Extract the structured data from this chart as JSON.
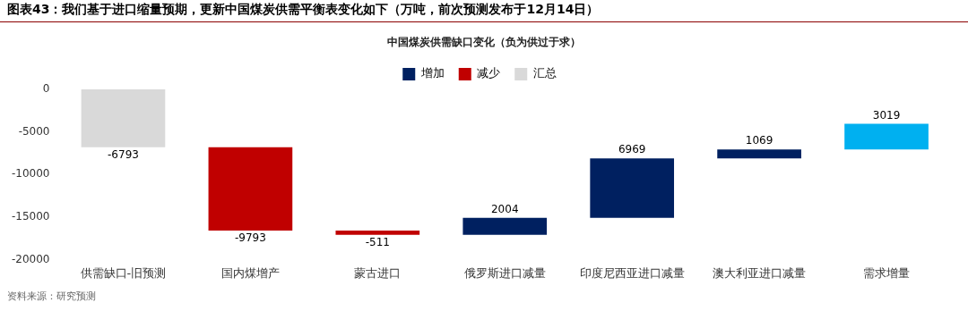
{
  "chart_data": {
    "type": "bar",
    "title": "图表43：我们基于进口缩量预期，更新中国煤炭供需平衡表变化如下（万吨，前次预测发布于12月14日）",
    "subtitle": "中国煤炭供需缺口变化（负为供过于求）",
    "categories": [
      "供需缺口-旧预测",
      "国内煤增产",
      "蒙古进口",
      "俄罗斯进口减量",
      "印度尼西亚进口减量",
      "澳大利亚进口减量",
      "需求增量"
    ],
    "series": [
      {
        "name": "增加",
        "color": "#002060",
        "colors": [
          null,
          null,
          null,
          "#002060",
          "#002060",
          "#002060",
          "#00b0f0"
        ],
        "base": [
          null,
          null,
          null,
          -17097,
          -15093,
          -8124,
          -7055
        ],
        "values": [
          null,
          null,
          null,
          2004,
          6969,
          1069,
          3019
        ]
      },
      {
        "name": "减少",
        "color": "#c00000",
        "base": [
          null,
          -6793,
          -16586,
          null,
          null,
          null,
          null
        ],
        "values": [
          null,
          -9793,
          -511,
          null,
          null,
          null,
          null
        ]
      },
      {
        "name": "汇总",
        "color": "#d9d9d9",
        "base": [
          0,
          null,
          null,
          null,
          null,
          null,
          null
        ],
        "values": [
          -6793,
          null,
          null,
          null,
          null,
          null,
          null
        ]
      }
    ],
    "ylim": [
      -20000,
      0
    ],
    "yticks": [
      -20000,
      -15000,
      -10000,
      -5000,
      0
    ],
    "grid": false,
    "legend": "top",
    "data_labels": true,
    "annotations": [
      "资料来源：研究预测"
    ]
  }
}
